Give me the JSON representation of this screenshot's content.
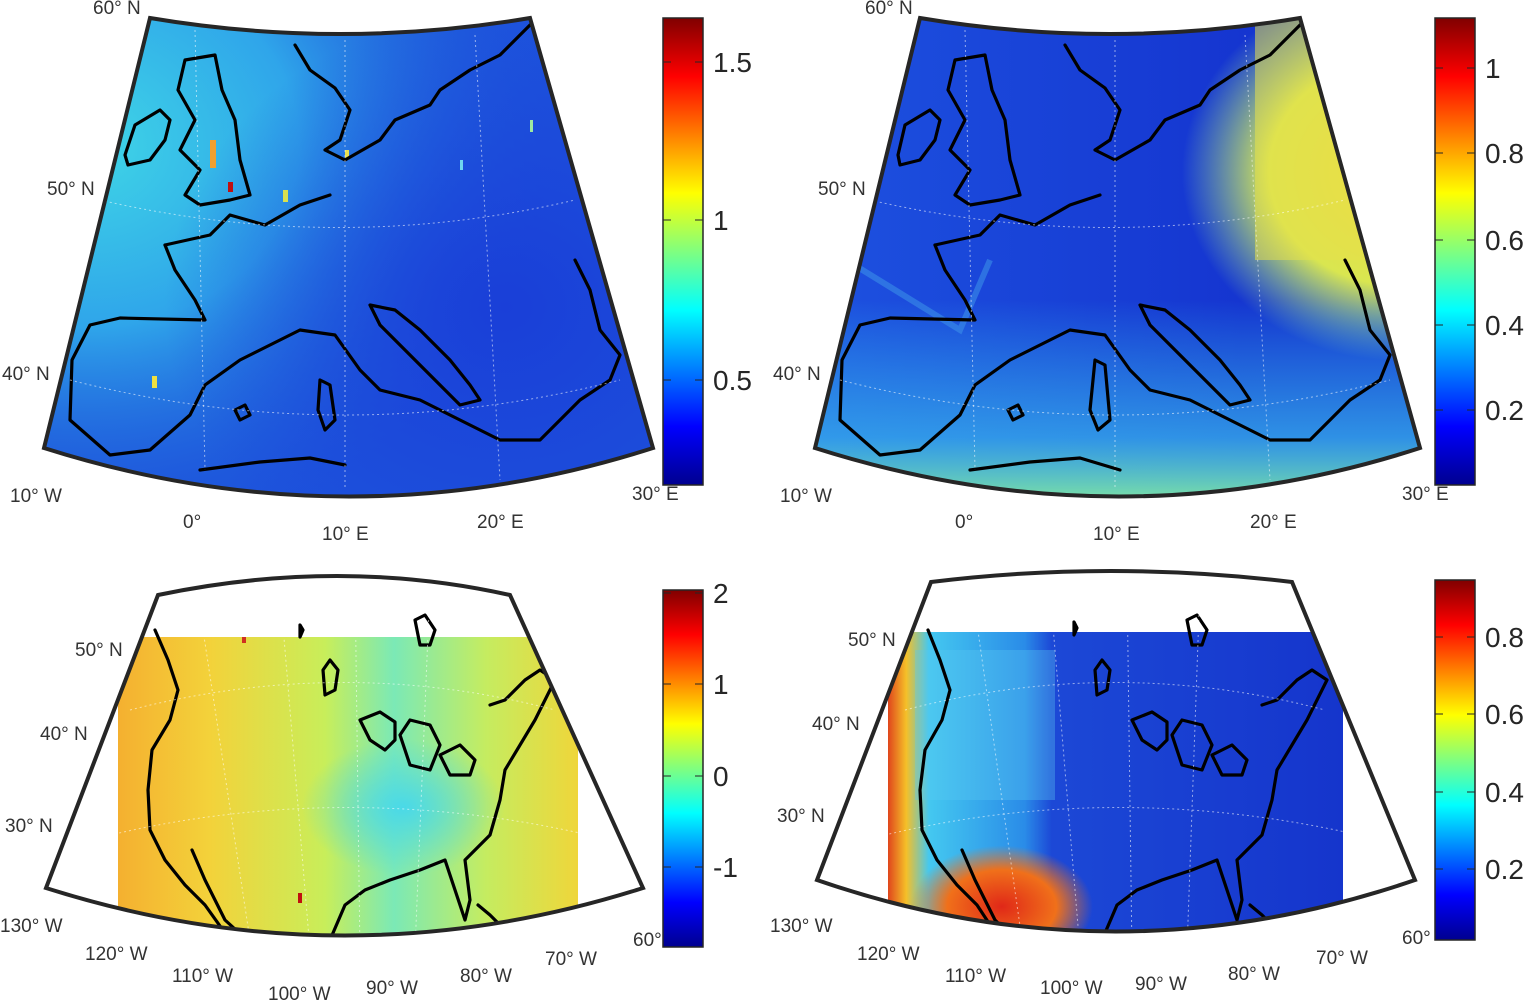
{
  "panels": [
    {
      "id": "europe-left",
      "region": "Europe",
      "lat_labels": [
        "60° N",
        "50° N",
        "40° N"
      ],
      "lon_labels": [
        "10° W",
        "0°",
        "10° E",
        "20° E",
        "30° E"
      ],
      "colorbar": {
        "colormap": "jet",
        "ticks": [
          "1.5",
          "1",
          "0.5"
        ],
        "range": [
          0.2,
          1.62
        ]
      }
    },
    {
      "id": "europe-right",
      "region": "Europe",
      "lat_labels": [
        "60° N",
        "50° N",
        "40° N"
      ],
      "lon_labels": [
        "10° W",
        "0°",
        "10° E",
        "20° E",
        "30° E"
      ],
      "colorbar": {
        "colormap": "jet",
        "ticks": [
          "1",
          "0.8",
          "0.6",
          "0.4",
          "0.2"
        ],
        "range": [
          0.03,
          1.12
        ]
      }
    },
    {
      "id": "usa-left",
      "region": "North America",
      "lat_labels": [
        "50° N",
        "40° N",
        "30° N"
      ],
      "lon_labels": [
        "130° W",
        "120° W",
        "110° W",
        "100° W",
        "90° W",
        "80° W",
        "70° W",
        "60°"
      ],
      "colorbar": {
        "colormap": "jet",
        "ticks": [
          "2",
          "1",
          "0",
          "-1"
        ],
        "range": [
          -1.7,
          2.05
        ]
      }
    },
    {
      "id": "usa-right",
      "region": "North America",
      "lat_labels": [
        "50° N",
        "40° N",
        "30° N"
      ],
      "lon_labels": [
        "130° W",
        "120° W",
        "110° W",
        "100° W",
        "90° W",
        "80° W",
        "70° W",
        "60°"
      ],
      "colorbar": {
        "colormap": "jet",
        "ticks": [
          "0.8",
          "0.6",
          "0.4",
          "0.2"
        ],
        "range": [
          0.01,
          0.94
        ]
      }
    }
  ],
  "colors": {
    "frame": "#262626",
    "coastline": "#000000",
    "label": "#333333"
  }
}
